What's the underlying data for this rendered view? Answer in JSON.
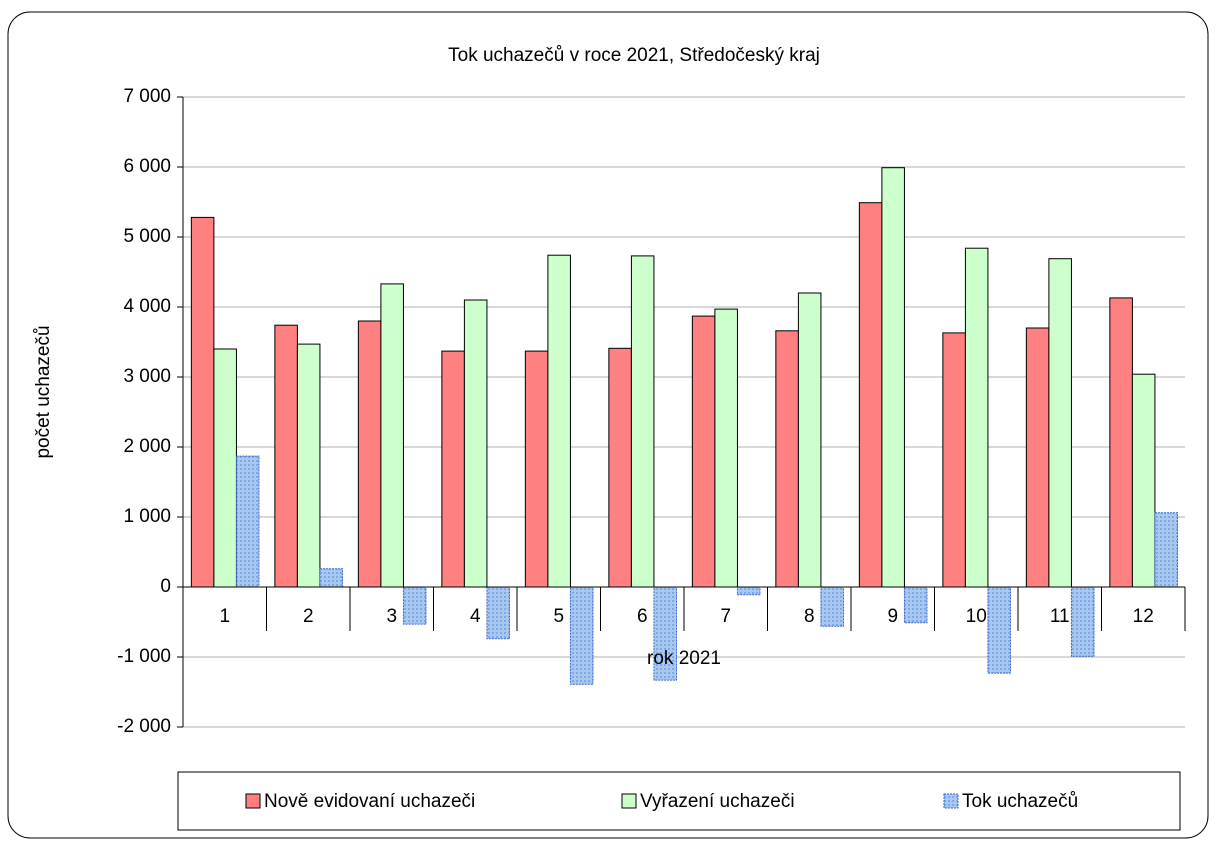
{
  "chart_data": {
    "type": "bar",
    "title": "Tok uchazečů v roce 2021, Středočeský kraj",
    "x_label": "rok 2021",
    "y_label": "počet uchazečů",
    "categories": [
      "1",
      "2",
      "3",
      "4",
      "5",
      "6",
      "7",
      "8",
      "9",
      "10",
      "11",
      "12"
    ],
    "series": [
      {
        "name": "Nově evidovaní uchazeči",
        "color": "#ff8080",
        "values": [
          5280,
          3740,
          3800,
          3370,
          3370,
          3410,
          3870,
          3660,
          5490,
          3630,
          3700,
          4130
        ]
      },
      {
        "name": "Vyřazení uchazeči",
        "color": "#ccffcc",
        "values": [
          3400,
          3470,
          4330,
          4100,
          4740,
          4730,
          3970,
          4200,
          5990,
          4840,
          4690,
          3040
        ]
      },
      {
        "name": "Tok uchazečů",
        "color": "#99ccff",
        "values": [
          1870,
          260,
          -530,
          -740,
          -1390,
          -1330,
          -110,
          -560,
          -510,
          -1230,
          -990,
          1060
        ]
      }
    ],
    "ylim": [
      -2000,
      7000
    ],
    "yticks": [
      {
        "value": -2000,
        "label": "-2 000"
      },
      {
        "value": -1000,
        "label": "-1 000"
      },
      0,
      {
        "value": 1000,
        "label": "1 000"
      },
      {
        "value": 2000,
        "label": "2 000"
      },
      {
        "value": 3000,
        "label": "3 000"
      },
      {
        "value": 4000,
        "label": "4 000"
      },
      {
        "value": 5000,
        "label": "5 000"
      },
      {
        "value": 6000,
        "label": "6 000"
      },
      {
        "value": 7000,
        "label": "7 000"
      }
    ],
    "grid": true,
    "legend": "bottom"
  }
}
